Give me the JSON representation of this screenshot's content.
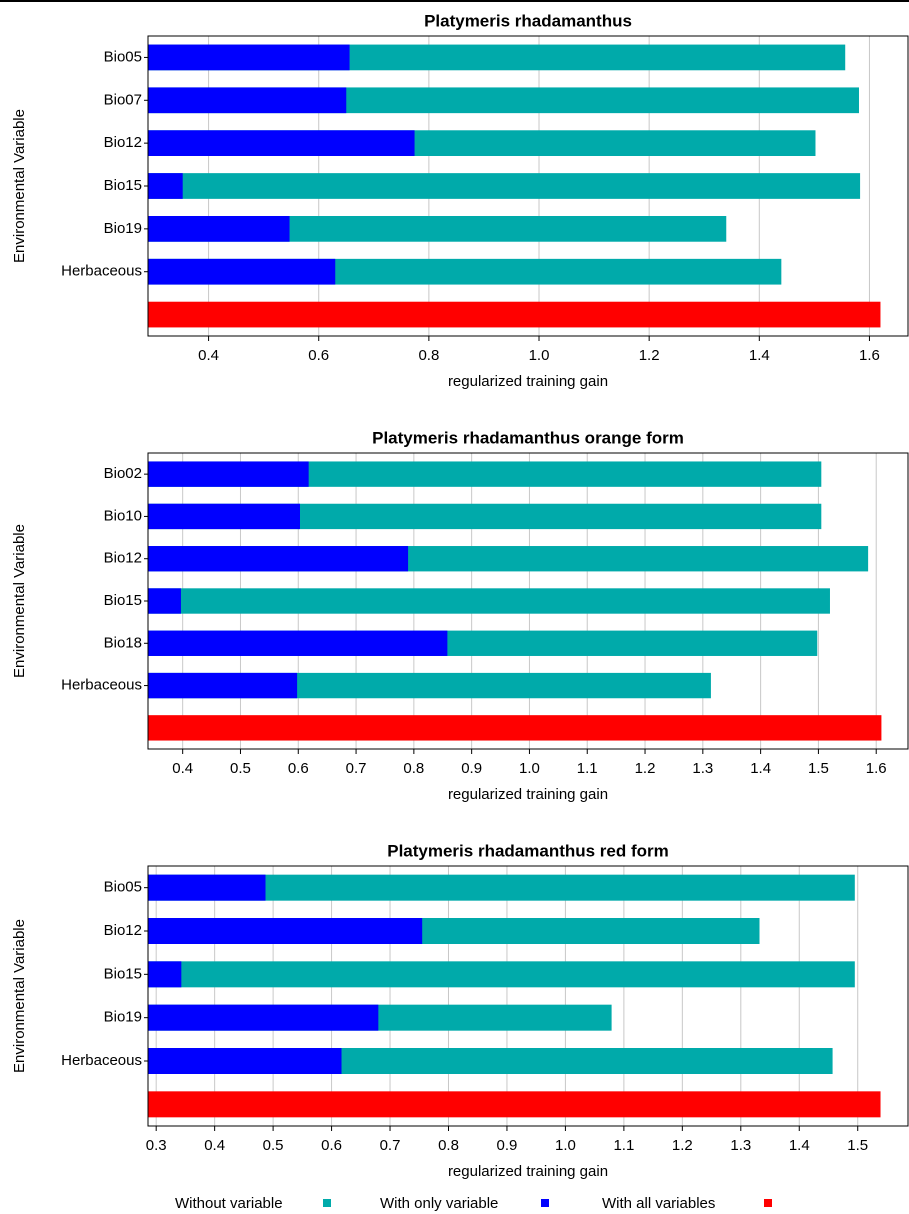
{
  "chart_data": [
    {
      "type": "bar",
      "orientation": "horizontal",
      "title": "Platymeris  rhadamanthus",
      "x_label": "regularized training gain",
      "y_label": "Environmental Variable",
      "categories": [
        "Bio05",
        "Bio07",
        "Bio12",
        "Bio15",
        "Bio19",
        "Herbaceous",
        null
      ],
      "series": [
        {
          "name": "Without variable",
          "color": "#00aaaa",
          "values": [
            1.556,
            1.581,
            1.502,
            1.583,
            1.34,
            1.44,
            null
          ]
        },
        {
          "name": "With only variable",
          "color": "#0000ff",
          "values": [
            0.656,
            0.65,
            0.774,
            0.353,
            0.547,
            0.63,
            null
          ]
        },
        {
          "name": "With all variables",
          "color": "#ff0000",
          "values": [
            null,
            null,
            null,
            null,
            null,
            null,
            1.62
          ]
        }
      ],
      "xlim": [
        0.29,
        1.67
      ],
      "xticks": [
        0.4,
        0.6,
        0.8,
        {
          "value": 1,
          "label": "1.0"
        },
        1.2,
        1.4,
        1.6
      ],
      "grid": true
    },
    {
      "type": "bar",
      "orientation": "horizontal",
      "title": "Platymeris  rhadamanthus  orange  form",
      "x_label": "regularized training gain",
      "y_label": "Environmental Variable",
      "categories": [
        "Bio02",
        "Bio10",
        "Bio12",
        "Bio15",
        "Bio18",
        "Herbaceous",
        null
      ],
      "series": [
        {
          "name": "Without variable",
          "color": "#00aaaa",
          "values": [
            1.505,
            1.505,
            1.586,
            1.52,
            1.498,
            1.314,
            null
          ]
        },
        {
          "name": "With only variable",
          "color": "#0000ff",
          "values": [
            0.618,
            0.603,
            0.79,
            0.397,
            0.858,
            0.598,
            null
          ]
        },
        {
          "name": "With all variables",
          "color": "#ff0000",
          "values": [
            null,
            null,
            null,
            null,
            null,
            null,
            1.609
          ]
        }
      ],
      "xlim": [
        0.34,
        1.655
      ],
      "xticks": [
        0.4,
        0.5,
        0.6,
        0.7,
        0.8,
        0.9,
        {
          "value": 1,
          "label": "1.0"
        },
        1.1,
        1.2,
        1.3,
        1.4,
        1.5,
        1.6
      ],
      "grid": true
    },
    {
      "type": "bar",
      "orientation": "horizontal",
      "title": "Platymeris  rhadamanthus  red  form",
      "x_label": "regularized training gain",
      "y_label": "Environmental Variable",
      "categories": [
        "Bio05",
        "Bio12",
        "Bio15",
        "Bio19",
        "Herbaceous",
        null
      ],
      "series": [
        {
          "name": "Without variable",
          "color": "#00aaaa",
          "values": [
            1.495,
            1.332,
            1.495,
            1.079,
            1.457,
            null
          ]
        },
        {
          "name": "With only variable",
          "color": "#0000ff",
          "values": [
            0.487,
            0.755,
            0.343,
            0.68,
            0.617,
            null
          ]
        },
        {
          "name": "With all variables",
          "color": "#ff0000",
          "values": [
            null,
            null,
            null,
            null,
            null,
            1.539
          ]
        }
      ],
      "xlim": [
        0.286,
        1.586
      ],
      "xticks": [
        0.3,
        0.4,
        0.5,
        0.6,
        0.7,
        0.8,
        0.9,
        {
          "value": 1,
          "label": "1.0"
        },
        1.1,
        1.2,
        1.3,
        1.4,
        1.5
      ],
      "grid": true
    }
  ]
}
